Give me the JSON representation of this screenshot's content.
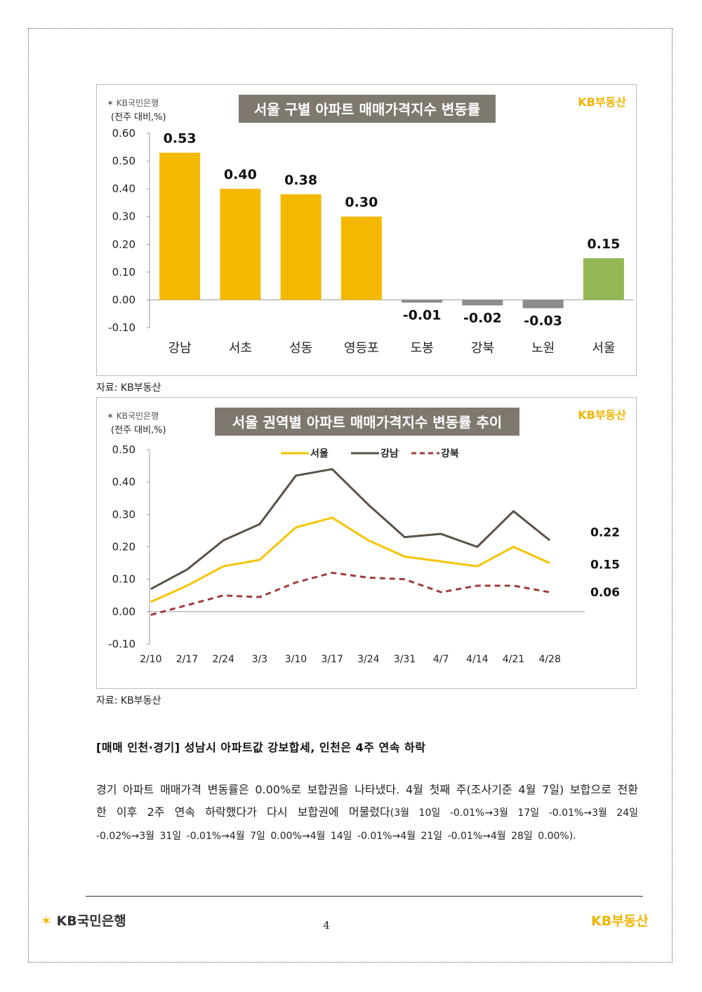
{
  "chart_data": [
    {
      "type": "bar",
      "title": "서울 구별 아파트 매매가격지수 변동률",
      "unit_label": "(전주 대비,%)",
      "brand_left": "KB국민은행",
      "brand_right": "KB부동산",
      "categories": [
        "강남",
        "서초",
        "성동",
        "영등포",
        "도봉",
        "강북",
        "노원",
        "서울"
      ],
      "values": [
        0.53,
        0.4,
        0.38,
        0.3,
        -0.01,
        -0.02,
        -0.03,
        0.15
      ],
      "value_labels": [
        "0.53",
        "0.40",
        "0.38",
        "0.30",
        "-0.01",
        "-0.02",
        "-0.03",
        "0.15"
      ],
      "bar_colors": [
        "#f5b800",
        "#f5b800",
        "#f5b800",
        "#f5b800",
        "#8c8c8c",
        "#8c8c8c",
        "#8c8c8c",
        "#93b755"
      ],
      "ylim": [
        -0.1,
        0.6
      ],
      "yticks": [
        "0.60",
        "0.50",
        "0.40",
        "0.30",
        "0.20",
        "0.10",
        "0.00",
        "-0.10"
      ],
      "ytick_values": [
        0.6,
        0.5,
        0.4,
        0.3,
        0.2,
        0.1,
        0.0,
        -0.1
      ],
      "grid": false
    },
    {
      "type": "line",
      "title": "서울 권역별 아파트 매매가격지수 변동률 추이",
      "unit_label": "(전주 대비,%)",
      "brand_left": "KB국민은행",
      "brand_right": "KB부동산",
      "x": [
        "2/10",
        "2/17",
        "2/24",
        "3/3",
        "3/10",
        "3/17",
        "3/24",
        "3/31",
        "4/7",
        "4/14",
        "4/21",
        "4/28"
      ],
      "series": [
        {
          "name": "서울",
          "color": "#f5c400",
          "dashed": false,
          "values": [
            0.03,
            0.08,
            0.14,
            0.16,
            0.26,
            0.29,
            0.22,
            0.17,
            0.155,
            0.14,
            0.2,
            0.15
          ],
          "end_label": "0.15"
        },
        {
          "name": "강남",
          "color": "#5a5248",
          "dashed": false,
          "values": [
            0.07,
            0.13,
            0.22,
            0.27,
            0.42,
            0.44,
            0.33,
            0.23,
            0.24,
            0.2,
            0.31,
            0.22
          ],
          "end_label": "0.22"
        },
        {
          "name": "강북",
          "color": "#a03c3c",
          "dashed": true,
          "values": [
            -0.01,
            0.02,
            0.05,
            0.045,
            0.09,
            0.12,
            0.105,
            0.1,
            0.06,
            0.08,
            0.08,
            0.06
          ],
          "end_label": "0.06"
        }
      ],
      "ylim": [
        -0.1,
        0.5
      ],
      "yticks": [
        "0.50",
        "0.40",
        "0.30",
        "0.20",
        "0.10",
        "0.00",
        "-0.10"
      ],
      "ytick_values": [
        0.5,
        0.4,
        0.3,
        0.2,
        0.1,
        0.0,
        -0.1
      ],
      "legend": "top-center",
      "grid": false
    }
  ],
  "captions": {
    "chart1_source": "자료: KB부동산",
    "chart2_source": "자료: KB부동산"
  },
  "section": {
    "title": "[매매 인천·경기] 성남시 아파트값 강보합세, 인천은 4주 연속 하락",
    "paragraph_main": "경기 아파트 매매가격 변동률은 0.00%로 보합권을 나타냈다. 4월 첫째 주(조사기준 4월 7일) 보합으로 전환한 이후 2주 연속 하락했다가 다시 보합권에 머물렀다",
    "paragraph_detail": "(3월 10일 -0.01%→3월 17일 -0.01%→3월 24일 -0.02%→3월 31일 -0.01%→4월 7일 0.00%→4월 14일 -0.01%→4월 21일 -0.01%→4월 28일 0.00%)."
  },
  "footer": {
    "left_brand": "KB국민은행",
    "page_number": "4",
    "right_brand": "KB부동산"
  }
}
